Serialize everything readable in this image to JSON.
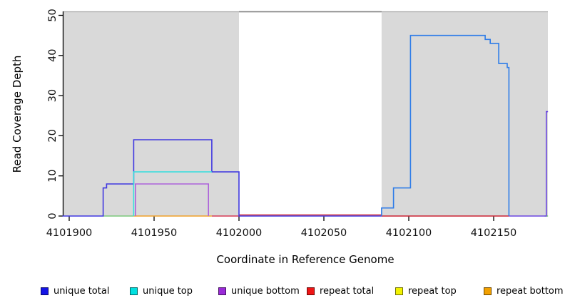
{
  "figure": {
    "background": "#ffffff",
    "band_color": "#d9d9d9"
  },
  "axes": {
    "x_title": "Coordinate in Reference Genome",
    "y_title": "Read Coverage Depth",
    "x_ticks": [
      {
        "value": 4101900,
        "label": "4101900"
      },
      {
        "value": 4101950,
        "label": "4101950"
      },
      {
        "value": 4102000,
        "label": "4102000"
      },
      {
        "value": 4102050,
        "label": "4102050"
      },
      {
        "value": 4102100,
        "label": "4102100"
      },
      {
        "value": 4102150,
        "label": "4102150"
      }
    ],
    "y_ticks": [
      {
        "value": 0,
        "label": "0"
      },
      {
        "value": 10,
        "label": "10"
      },
      {
        "value": 20,
        "label": "20"
      },
      {
        "value": 30,
        "label": "30"
      },
      {
        "value": 40,
        "label": "40"
      },
      {
        "value": 50,
        "label": "50"
      }
    ]
  },
  "legend": {
    "items": [
      {
        "label": "unique total",
        "color": "#1414e6"
      },
      {
        "label": "unique top",
        "color": "#00e0e0"
      },
      {
        "label": "unique bottom",
        "color": "#9a2ad8"
      },
      {
        "label": "repeat total",
        "color": "#ee1515"
      },
      {
        "label": "repeat top",
        "color": "#f2f200"
      },
      {
        "label": "repeat bottom",
        "color": "#f2a000"
      }
    ]
  },
  "chart_data": {
    "type": "line",
    "title": "",
    "xlabel": "Coordinate in Reference Genome",
    "ylabel": "Read Coverage Depth",
    "xlim": [
      4101896,
      4102182
    ],
    "ylim": [
      0,
      50
    ],
    "x_tick_values": [
      4101900,
      4101950,
      4102000,
      4102050,
      4102100,
      4102150
    ],
    "y_tick_values": [
      0,
      10,
      20,
      30,
      40,
      50
    ],
    "grid": false,
    "legend_position": "bottom",
    "background_bands": [
      {
        "from": 4101896,
        "to": 4102000
      },
      {
        "from": 4102084,
        "to": 4102182
      }
    ],
    "series": [
      {
        "name": "unique total",
        "step_points": [
          [
            4101896,
            0
          ],
          [
            4101920,
            8
          ],
          [
            4101938,
            19
          ],
          [
            4101984,
            11
          ],
          [
            4102000,
            0
          ],
          [
            4102084,
            2
          ],
          [
            4102091,
            7
          ],
          [
            4102101,
            45
          ],
          [
            4102145,
            44
          ],
          [
            4102148,
            43
          ],
          [
            4102153,
            38
          ],
          [
            4102158,
            37
          ],
          [
            4102159,
            0
          ],
          [
            4102181,
            26
          ],
          [
            4102182,
            26
          ]
        ]
      },
      {
        "name": "unique top",
        "step_points": [
          [
            4101896,
            0
          ],
          [
            4101938,
            11
          ],
          [
            4101984,
            0
          ],
          [
            4102182,
            0
          ]
        ]
      },
      {
        "name": "unique bottom",
        "step_points": [
          [
            4101896,
            0
          ],
          [
            4101939,
            8
          ],
          [
            4101982,
            0
          ],
          [
            4102181,
            26
          ],
          [
            4102182,
            26
          ]
        ]
      },
      {
        "name": "repeat total",
        "step_points": [
          [
            4101896,
            0
          ],
          [
            4102182,
            0
          ]
        ]
      },
      {
        "name": "repeat top",
        "step_points": [
          [
            4101896,
            0
          ],
          [
            4102182,
            0
          ]
        ]
      },
      {
        "name": "repeat bottom",
        "step_points": [
          [
            4101896,
            0
          ],
          [
            4102182,
            0
          ]
        ]
      }
    ],
    "segments": [
      {
        "series": "repeat total",
        "color": "#d63a55",
        "points": [
          [
            4101984,
            0
          ],
          [
            4102000,
            0
          ]
        ]
      },
      {
        "series": "repeat total",
        "color": "#cc2233",
        "dy": -1.5,
        "points": [
          [
            4102000,
            0
          ],
          [
            4102084,
            0
          ]
        ]
      },
      {
        "series": "repeat total",
        "color": "#cc2233",
        "points": [
          [
            4102084,
            0
          ],
          [
            4102159,
            0
          ]
        ]
      },
      {
        "series": "repeat overlap",
        "color": "#7cc87c",
        "points": [
          [
            4101920,
            0
          ],
          [
            4101938,
            0
          ]
        ]
      },
      {
        "series": "repeat overlap",
        "color": "#7cc87c",
        "points": [
          [
            4102180,
            0
          ],
          [
            4102182,
            0
          ]
        ]
      },
      {
        "series": "repeat bottom",
        "color": "#f0a028",
        "points": [
          [
            4101938,
            0
          ],
          [
            4101984,
            0
          ]
        ]
      },
      {
        "series": "unique bottom",
        "color": "#ad62da",
        "points": [
          [
            4101939,
            0
          ],
          [
            4101939,
            8
          ],
          [
            4101982,
            8
          ],
          [
            4101982,
            0
          ]
        ]
      },
      {
        "series": "unique total",
        "color": "#4038e0",
        "points": [
          [
            4101896,
            0
          ],
          [
            4101920,
            0
          ],
          [
            4101920,
            7
          ],
          [
            4101922,
            7
          ],
          [
            4101922,
            8
          ],
          [
            4101938,
            8
          ],
          [
            4101938,
            19
          ],
          [
            4101984,
            19
          ],
          [
            4101984,
            11
          ],
          [
            4102000,
            11
          ],
          [
            4102000,
            0
          ],
          [
            4102084,
            0
          ]
        ]
      },
      {
        "series": "unique top",
        "color": "#38dede",
        "points": [
          [
            4101938,
            0
          ],
          [
            4101938,
            11
          ],
          [
            4101984,
            11
          ]
        ]
      },
      {
        "series": "unique total",
        "color": "#2e7ce8",
        "points": [
          [
            4102084,
            0
          ],
          [
            4102084,
            2
          ],
          [
            4102091,
            2
          ],
          [
            4102091,
            7
          ],
          [
            4102101,
            7
          ],
          [
            4102101,
            45
          ],
          [
            4102145,
            45
          ],
          [
            4102145,
            44
          ],
          [
            4102148,
            44
          ],
          [
            4102148,
            43
          ],
          [
            4102153,
            43
          ],
          [
            4102153,
            38
          ],
          [
            4102158,
            38
          ],
          [
            4102158,
            37
          ],
          [
            4102159,
            37
          ],
          [
            4102159,
            0
          ]
        ]
      },
      {
        "series": "unique total + unique bottom",
        "color": "#6b46e0",
        "points": [
          [
            4102159,
            0
          ],
          [
            4102181,
            0
          ],
          [
            4102181,
            26
          ],
          [
            4102182,
            26
          ]
        ]
      }
    ]
  }
}
